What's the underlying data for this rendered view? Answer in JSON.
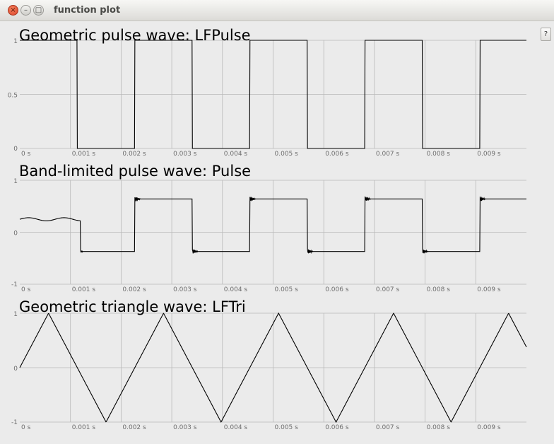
{
  "window": {
    "title": "function plot",
    "help_label": "?"
  },
  "chart_data": [
    {
      "type": "line",
      "title": "Geometric pulse wave: LFPulse",
      "wave": "pulse",
      "xlabel": "",
      "ylabel": "",
      "xlim": [
        0,
        0.01
      ],
      "ylim": [
        0,
        1
      ],
      "x_ticks": [
        "0 s",
        "0.001 s",
        "0.002 s",
        "0.003 s",
        "0.004 s",
        "0.005 s",
        "0.006 s",
        "0.007 s",
        "0.008 s",
        "0.009 s"
      ],
      "y_ticks": [
        "0",
        "0.5",
        "1"
      ],
      "period": 0.00227,
      "duty": 0.5,
      "low": 0,
      "high": 1,
      "grid": true
    },
    {
      "type": "line",
      "title": "Band-limited pulse wave: Pulse",
      "wave": "bandlimited-pulse",
      "xlabel": "",
      "ylabel": "",
      "xlim": [
        0,
        0.01
      ],
      "ylim": [
        -1,
        1
      ],
      "x_ticks": [
        "0 s",
        "0.001 s",
        "0.002 s",
        "0.003 s",
        "0.004 s",
        "0.005 s",
        "0.006 s",
        "0.007 s",
        "0.008 s",
        "0.009 s"
      ],
      "y_ticks": [
        "-1",
        "0",
        "1"
      ],
      "period": 0.00227,
      "duty": 0.5,
      "low": -0.37,
      "high": 0.64,
      "grid": true
    },
    {
      "type": "line",
      "title": "Geometric triangle wave: LFTri",
      "wave": "triangle",
      "xlabel": "",
      "ylabel": "",
      "xlim": [
        0,
        0.01
      ],
      "ylim": [
        -1,
        1
      ],
      "x_ticks": [
        "0 s",
        "0.001 s",
        "0.002 s",
        "0.003 s",
        "0.004 s",
        "0.005 s",
        "0.006 s",
        "0.007 s",
        "0.008 s",
        "0.009 s"
      ],
      "y_ticks": [
        "-1",
        "0",
        "1"
      ],
      "period": 0.00227,
      "low": -1,
      "high": 1,
      "grid": true
    }
  ]
}
